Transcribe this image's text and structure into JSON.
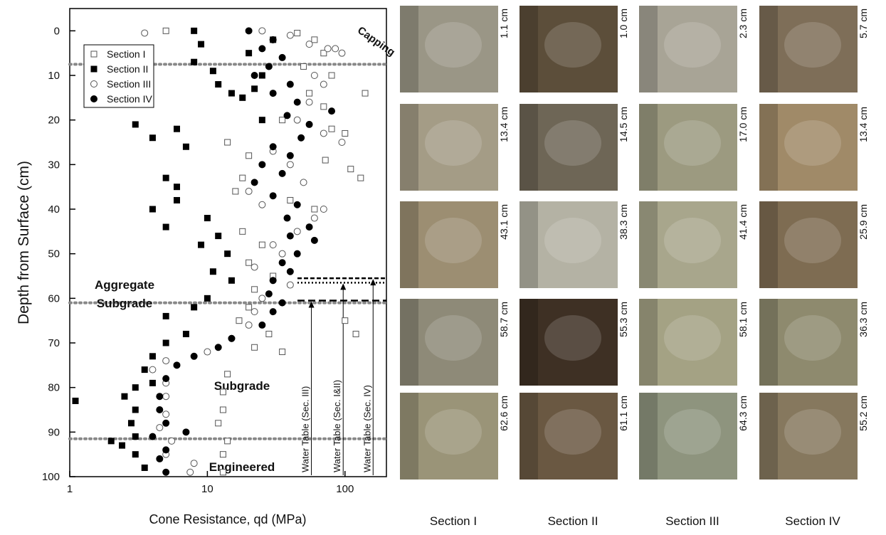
{
  "chart_data": {
    "type": "scatter",
    "xlabel": "Cone Resistance, qd (MPa)",
    "ylabel": "Depth from Surface (cm)",
    "xlog": true,
    "yreversed": true,
    "xlim": [
      1,
      200
    ],
    "xticks": [
      1,
      10,
      100
    ],
    "ylim": [
      -5,
      100
    ],
    "yticks": [
      0,
      10,
      20,
      30,
      40,
      50,
      60,
      70,
      80,
      90,
      100
    ],
    "grid": false,
    "legend": "upper left",
    "layer_boundaries": [
      7.5,
      61,
      91.5
    ],
    "annotations": {
      "capping": "Capping",
      "aggregate": [
        "Aggregate",
        "Subgrade"
      ],
      "engineered": [
        "Engineered",
        "Subgrade"
      ]
    },
    "water_tables": [
      {
        "label": "Water Table (Sec. III)",
        "depth": 60.5,
        "x": 57
      },
      {
        "label": "Water Table (Sec. I&II)",
        "depth": 56.5,
        "x": 97
      },
      {
        "label": "Water Table (Sec. IV)",
        "depth": 55.5,
        "x": 160
      }
    ],
    "series": [
      {
        "name": "Section I",
        "color": "#555555",
        "marker": "open-square",
        "x": [
          5,
          45,
          60,
          70,
          80,
          55,
          70,
          80,
          100,
          14,
          20,
          18,
          16,
          40,
          60,
          18,
          25,
          20,
          30,
          22,
          20,
          17,
          28,
          22,
          35,
          14,
          13,
          13,
          12,
          14,
          13,
          13,
          100,
          120,
          110,
          130,
          140,
          72,
          35,
          50
        ],
        "values": [
          0,
          0.5,
          2,
          5,
          10,
          14,
          17,
          22,
          23,
          25,
          28,
          33,
          36,
          38,
          40,
          45,
          48,
          52,
          55,
          58,
          62,
          65,
          68,
          71,
          72,
          77,
          81,
          85,
          88,
          92,
          95,
          99,
          65,
          68,
          31,
          33,
          14,
          29,
          20,
          8
        ]
      },
      {
        "name": "Section II",
        "color": "#000000",
        "marker": "filled-square",
        "x": [
          8,
          9,
          8,
          11,
          12,
          15,
          18,
          22,
          25,
          3,
          4,
          6,
          7,
          5,
          6,
          4,
          5,
          6,
          10,
          12,
          9,
          14,
          11,
          15,
          10,
          8,
          5,
          7,
          5,
          4,
          3.5,
          4,
          3,
          2.5,
          3,
          2.8,
          3,
          2.4,
          3,
          3.5,
          1.1,
          2,
          20,
          30,
          25
        ],
        "values": [
          0,
          3,
          7,
          9,
          12,
          14,
          15,
          13,
          10,
          21,
          24,
          22,
          26,
          33,
          38,
          40,
          44,
          35,
          42,
          46,
          48,
          50,
          54,
          56,
          60,
          62,
          64,
          68,
          70,
          73,
          76,
          79,
          80,
          82,
          85,
          88,
          91,
          93,
          95,
          98,
          83,
          92,
          5,
          2,
          20
        ]
      },
      {
        "name": "Section III",
        "color": "#555555",
        "marker": "open-circle",
        "x": [
          3.5,
          25,
          40,
          55,
          75,
          95,
          60,
          70,
          55,
          45,
          70,
          95,
          30,
          40,
          50,
          20,
          25,
          60,
          45,
          30,
          35,
          22,
          40,
          25,
          22,
          20,
          15,
          10,
          5,
          4,
          5,
          5,
          5,
          4.5,
          5.5,
          5,
          8,
          7.5,
          85,
          70
        ],
        "values": [
          0.5,
          0,
          1,
          3,
          4,
          5,
          10,
          12,
          16,
          20,
          23,
          25,
          27,
          30,
          34,
          36,
          39,
          42,
          45,
          48,
          50,
          53,
          57,
          60,
          63,
          66,
          69,
          72,
          74,
          76,
          79,
          82,
          86,
          89,
          92,
          95,
          97,
          99,
          4,
          40
        ]
      },
      {
        "name": "Section IV",
        "color": "#000000",
        "marker": "filled-circle",
        "x": [
          20,
          30,
          25,
          35,
          28,
          22,
          40,
          30,
          45,
          38,
          55,
          48,
          30,
          40,
          25,
          35,
          22,
          30,
          45,
          38,
          55,
          40,
          60,
          45,
          35,
          40,
          30,
          28,
          35,
          30,
          25,
          15,
          12,
          8,
          6,
          5,
          4.5,
          4.5,
          5,
          4,
          5,
          4.5,
          5,
          7,
          80
        ],
        "values": [
          0,
          2,
          4,
          6,
          8,
          10,
          12,
          14,
          16,
          19,
          21,
          24,
          26,
          28,
          30,
          32,
          34,
          37,
          39,
          42,
          44,
          46,
          47,
          50,
          52,
          54,
          56,
          59,
          61,
          63,
          66,
          69,
          71,
          73,
          75,
          78,
          82,
          85,
          88,
          91,
          94,
          96,
          99,
          90,
          18
        ]
      }
    ]
  },
  "photos": {
    "columns": [
      "Section I",
      "Section II",
      "Section III",
      "Section IV"
    ],
    "labels": [
      [
        "1.1 cm",
        "1.0 cm",
        "2.3 cm",
        "5.7 cm"
      ],
      [
        "13.4 cm",
        "14.5 cm",
        "17.0 cm",
        "13.4 cm"
      ],
      [
        "43.1 cm",
        "38.3 cm",
        "41.4 cm",
        "25.9 cm"
      ],
      [
        "58.7 cm",
        "55.3 cm",
        "58.1 cm",
        "36.3 cm"
      ],
      [
        "62.6 cm",
        "61.1 cm",
        "64.3 cm",
        "55.2 cm"
      ]
    ]
  }
}
